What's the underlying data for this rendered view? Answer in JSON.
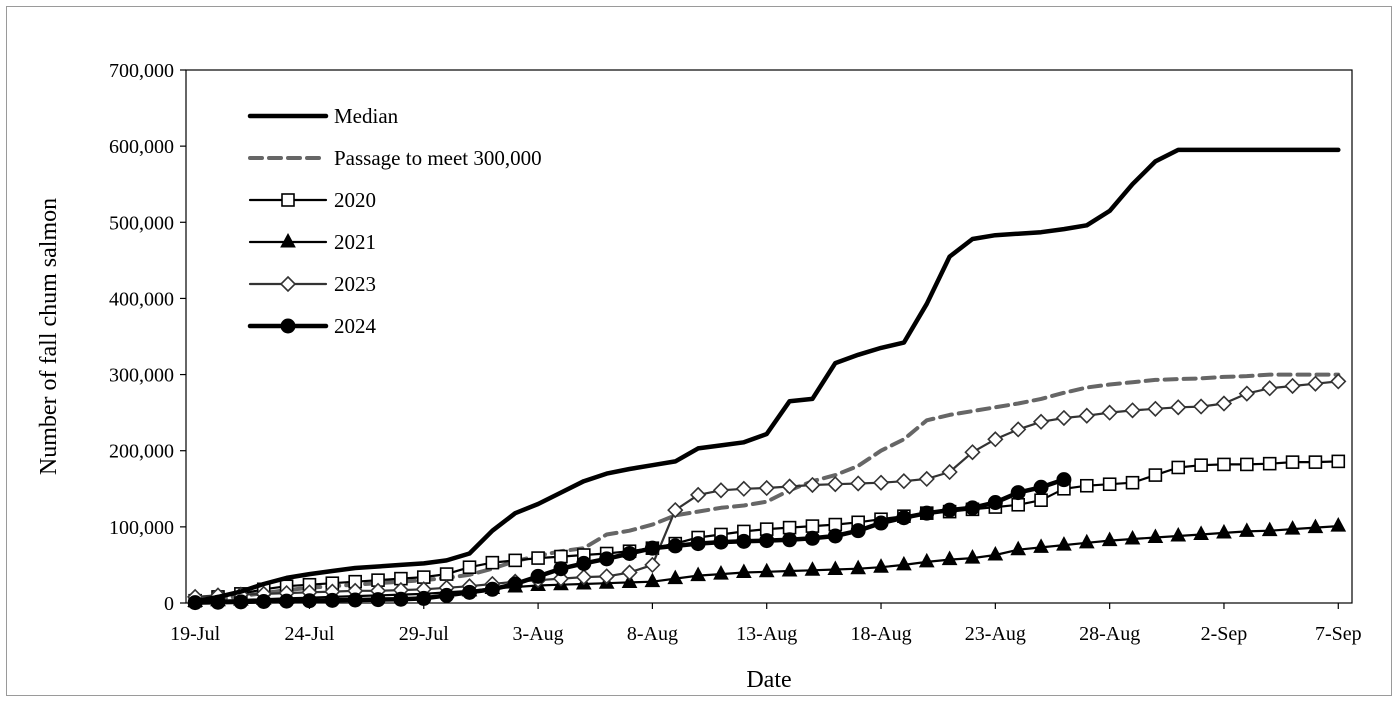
{
  "chart_data": {
    "type": "line",
    "title": "",
    "xlabel": "Date",
    "ylabel": "Number of fall chum salmon",
    "ylim": [
      0,
      700000
    ],
    "yticks": [
      "0",
      "100,000",
      "200,000",
      "300,000",
      "400,000",
      "500,000",
      "600,000",
      "700,000"
    ],
    "xlim": [
      "19-Jul",
      "7-Sep"
    ],
    "xticks": [
      "19-Jul",
      "24-Jul",
      "29-Jul",
      "3-Aug",
      "8-Aug",
      "13-Aug",
      "18-Aug",
      "23-Aug",
      "28-Aug",
      "2-Sep",
      "7-Sep"
    ],
    "legend_position": "top-left",
    "grid": false,
    "series": [
      {
        "name": "Median",
        "style": "solid-thick",
        "marker": "none",
        "color": "#000000",
        "x": [
          "19-Jul",
          "20-Jul",
          "21-Jul",
          "22-Jul",
          "23-Jul",
          "24-Jul",
          "25-Jul",
          "26-Jul",
          "27-Jul",
          "28-Jul",
          "29-Jul",
          "30-Jul",
          "31-Jul",
          "1-Aug",
          "2-Aug",
          "3-Aug",
          "4-Aug",
          "5-Aug",
          "6-Aug",
          "7-Aug",
          "8-Aug",
          "9-Aug",
          "10-Aug",
          "11-Aug",
          "12-Aug",
          "13-Aug",
          "14-Aug",
          "15-Aug",
          "16-Aug",
          "17-Aug",
          "18-Aug",
          "19-Aug",
          "20-Aug",
          "21-Aug",
          "22-Aug",
          "23-Aug",
          "24-Aug",
          "25-Aug",
          "26-Aug",
          "27-Aug",
          "28-Aug",
          "29-Aug",
          "30-Aug",
          "31-Aug",
          "1-Sep",
          "2-Sep",
          "3-Sep",
          "4-Sep",
          "5-Sep",
          "6-Sep",
          "7-Sep"
        ],
        "values": [
          2000,
          8000,
          15000,
          25000,
          33000,
          38000,
          42000,
          46000,
          48000,
          50000,
          52000,
          56000,
          65000,
          95000,
          118000,
          130000,
          145000,
          160000,
          170000,
          176000,
          181000,
          186000,
          203000,
          207000,
          211000,
          222000,
          265000,
          268000,
          315000,
          326000,
          335000,
          342000,
          393000,
          455000,
          478000,
          483000,
          485000,
          487000,
          491000,
          496000,
          515000,
          550000,
          580000,
          595000,
          595000,
          595000,
          595000,
          595000,
          595000,
          595000,
          595000
        ]
      },
      {
        "name": "Passage to meet 300,000",
        "style": "dashed",
        "marker": "none",
        "color": "#666666",
        "x": [
          "19-Jul",
          "20-Jul",
          "21-Jul",
          "22-Jul",
          "23-Jul",
          "24-Jul",
          "25-Jul",
          "26-Jul",
          "27-Jul",
          "28-Jul",
          "29-Jul",
          "30-Jul",
          "31-Jul",
          "1-Aug",
          "2-Aug",
          "3-Aug",
          "4-Aug",
          "5-Aug",
          "6-Aug",
          "7-Aug",
          "8-Aug",
          "9-Aug",
          "10-Aug",
          "11-Aug",
          "12-Aug",
          "13-Aug",
          "14-Aug",
          "15-Aug",
          "16-Aug",
          "17-Aug",
          "18-Aug",
          "19-Aug",
          "20-Aug",
          "21-Aug",
          "22-Aug",
          "23-Aug",
          "24-Aug",
          "25-Aug",
          "26-Aug",
          "27-Aug",
          "28-Aug",
          "29-Aug",
          "30-Aug",
          "31-Aug",
          "1-Sep",
          "2-Sep",
          "3-Sep",
          "4-Sep",
          "5-Sep",
          "6-Sep",
          "7-Sep"
        ],
        "values": [
          2000,
          5000,
          9000,
          13000,
          17000,
          20000,
          22000,
          24000,
          26000,
          28000,
          30000,
          33000,
          37000,
          45000,
          55000,
          62000,
          68000,
          72000,
          90000,
          95000,
          103000,
          115000,
          120000,
          125000,
          128000,
          133000,
          148000,
          160000,
          168000,
          180000,
          200000,
          215000,
          240000,
          247000,
          252000,
          257000,
          262000,
          268000,
          276000,
          283000,
          287000,
          290000,
          293000,
          294000,
          295000,
          297000,
          298000,
          300000,
          300000,
          300000,
          300000
        ]
      },
      {
        "name": "2020",
        "style": "solid",
        "marker": "open-square",
        "color": "#000000",
        "x": [
          "19-Jul",
          "20-Jul",
          "21-Jul",
          "22-Jul",
          "23-Jul",
          "24-Jul",
          "25-Jul",
          "26-Jul",
          "27-Jul",
          "28-Jul",
          "29-Jul",
          "30-Jul",
          "31-Jul",
          "1-Aug",
          "2-Aug",
          "3-Aug",
          "4-Aug",
          "5-Aug",
          "6-Aug",
          "7-Aug",
          "8-Aug",
          "9-Aug",
          "10-Aug",
          "11-Aug",
          "12-Aug",
          "13-Aug",
          "14-Aug",
          "15-Aug",
          "16-Aug",
          "17-Aug",
          "18-Aug",
          "19-Aug",
          "20-Aug",
          "21-Aug",
          "22-Aug",
          "23-Aug",
          "24-Aug",
          "25-Aug",
          "26-Aug",
          "27-Aug",
          "28-Aug",
          "29-Aug",
          "30-Aug",
          "31-Aug",
          "1-Sep",
          "2-Sep",
          "3-Sep",
          "4-Sep",
          "5-Sep",
          "6-Sep",
          "7-Sep"
        ],
        "values": [
          3000,
          8000,
          12000,
          18000,
          22000,
          24000,
          26000,
          28000,
          30000,
          32000,
          34000,
          38000,
          47000,
          53000,
          56000,
          59000,
          61000,
          63000,
          65000,
          68000,
          72000,
          78000,
          86000,
          90000,
          94000,
          97000,
          99000,
          101000,
          103000,
          106000,
          110000,
          114000,
          118000,
          120000,
          123000,
          126000,
          129000,
          135000,
          150000,
          154000,
          156000,
          158000,
          168000,
          178000,
          181000,
          182000,
          182000,
          183000,
          185000,
          185000,
          186000
        ]
      },
      {
        "name": "2021",
        "style": "solid",
        "marker": "filled-triangle",
        "color": "#000000",
        "x": [
          "19-Jul",
          "20-Jul",
          "21-Jul",
          "22-Jul",
          "23-Jul",
          "24-Jul",
          "25-Jul",
          "26-Jul",
          "27-Jul",
          "28-Jul",
          "29-Jul",
          "30-Jul",
          "31-Jul",
          "1-Aug",
          "2-Aug",
          "3-Aug",
          "4-Aug",
          "5-Aug",
          "6-Aug",
          "7-Aug",
          "8-Aug",
          "9-Aug",
          "10-Aug",
          "11-Aug",
          "12-Aug",
          "13-Aug",
          "14-Aug",
          "15-Aug",
          "16-Aug",
          "17-Aug",
          "18-Aug",
          "19-Aug",
          "20-Aug",
          "21-Aug",
          "22-Aug",
          "23-Aug",
          "24-Aug",
          "25-Aug",
          "26-Aug",
          "27-Aug",
          "28-Aug",
          "29-Aug",
          "30-Aug",
          "31-Aug",
          "1-Sep",
          "2-Sep",
          "3-Sep",
          "4-Sep",
          "5-Sep",
          "6-Sep",
          "7-Sep"
        ],
        "values": [
          2000,
          3000,
          4000,
          5000,
          6000,
          7000,
          8000,
          9000,
          10000,
          11000,
          12000,
          14000,
          16000,
          19000,
          21000,
          23000,
          24000,
          25000,
          26000,
          27000,
          28000,
          32000,
          36000,
          38000,
          40000,
          41000,
          42000,
          43000,
          44000,
          45000,
          47000,
          50000,
          54000,
          57000,
          59000,
          63000,
          70000,
          73000,
          76000,
          79000,
          82000,
          84000,
          86000,
          88000,
          90000,
          92000,
          94000,
          95000,
          97000,
          99000,
          101000
        ]
      },
      {
        "name": "2023",
        "style": "solid",
        "marker": "open-diamond",
        "color": "#333333",
        "x": [
          "19-Jul",
          "20-Jul",
          "21-Jul",
          "22-Jul",
          "23-Jul",
          "24-Jul",
          "25-Jul",
          "26-Jul",
          "27-Jul",
          "28-Jul",
          "29-Jul",
          "30-Jul",
          "31-Jul",
          "1-Aug",
          "2-Aug",
          "3-Aug",
          "4-Aug",
          "5-Aug",
          "6-Aug",
          "7-Aug",
          "8-Aug",
          "9-Aug",
          "10-Aug",
          "11-Aug",
          "12-Aug",
          "13-Aug",
          "14-Aug",
          "15-Aug",
          "16-Aug",
          "17-Aug",
          "18-Aug",
          "19-Aug",
          "20-Aug",
          "21-Aug",
          "22-Aug",
          "23-Aug",
          "24-Aug",
          "25-Aug",
          "26-Aug",
          "27-Aug",
          "28-Aug",
          "29-Aug",
          "30-Aug",
          "31-Aug",
          "1-Sep",
          "2-Sep",
          "3-Sep",
          "4-Sep",
          "5-Sep",
          "6-Sep",
          "7-Sep"
        ],
        "values": [
          8000,
          10000,
          11000,
          12000,
          13000,
          14000,
          15000,
          16000,
          16000,
          17000,
          18000,
          20000,
          22000,
          25000,
          28000,
          30000,
          32000,
          34000,
          35000,
          40000,
          50000,
          122000,
          142000,
          148000,
          150000,
          151000,
          153000,
          155000,
          156000,
          157000,
          158000,
          160000,
          163000,
          172000,
          198000,
          215000,
          228000,
          238000,
          243000,
          246000,
          250000,
          253000,
          255000,
          257000,
          258000,
          262000,
          275000,
          282000,
          285000,
          288000,
          291000
        ]
      },
      {
        "name": "2024",
        "style": "solid-thick",
        "marker": "filled-circle",
        "color": "#000000",
        "x": [
          "19-Jul",
          "20-Jul",
          "21-Jul",
          "22-Jul",
          "23-Jul",
          "24-Jul",
          "25-Jul",
          "26-Jul",
          "27-Jul",
          "28-Jul",
          "29-Jul",
          "30-Jul",
          "31-Jul",
          "1-Aug",
          "2-Aug",
          "3-Aug",
          "4-Aug",
          "5-Aug",
          "6-Aug",
          "7-Aug",
          "8-Aug",
          "9-Aug",
          "10-Aug",
          "11-Aug",
          "12-Aug",
          "13-Aug",
          "14-Aug",
          "15-Aug",
          "16-Aug",
          "17-Aug",
          "18-Aug",
          "19-Aug",
          "20-Aug",
          "21-Aug",
          "22-Aug",
          "23-Aug",
          "24-Aug",
          "25-Aug",
          "26-Aug"
        ],
        "values": [
          500,
          1000,
          1500,
          2000,
          2500,
          3000,
          3500,
          4000,
          4500,
          5000,
          6000,
          10000,
          14000,
          18000,
          25000,
          35000,
          45000,
          52000,
          58000,
          65000,
          72000,
          75000,
          78000,
          80000,
          81000,
          82000,
          83000,
          85000,
          88000,
          95000,
          105000,
          112000,
          118000,
          122000,
          125000,
          132000,
          145000,
          152000,
          162000
        ]
      }
    ]
  }
}
